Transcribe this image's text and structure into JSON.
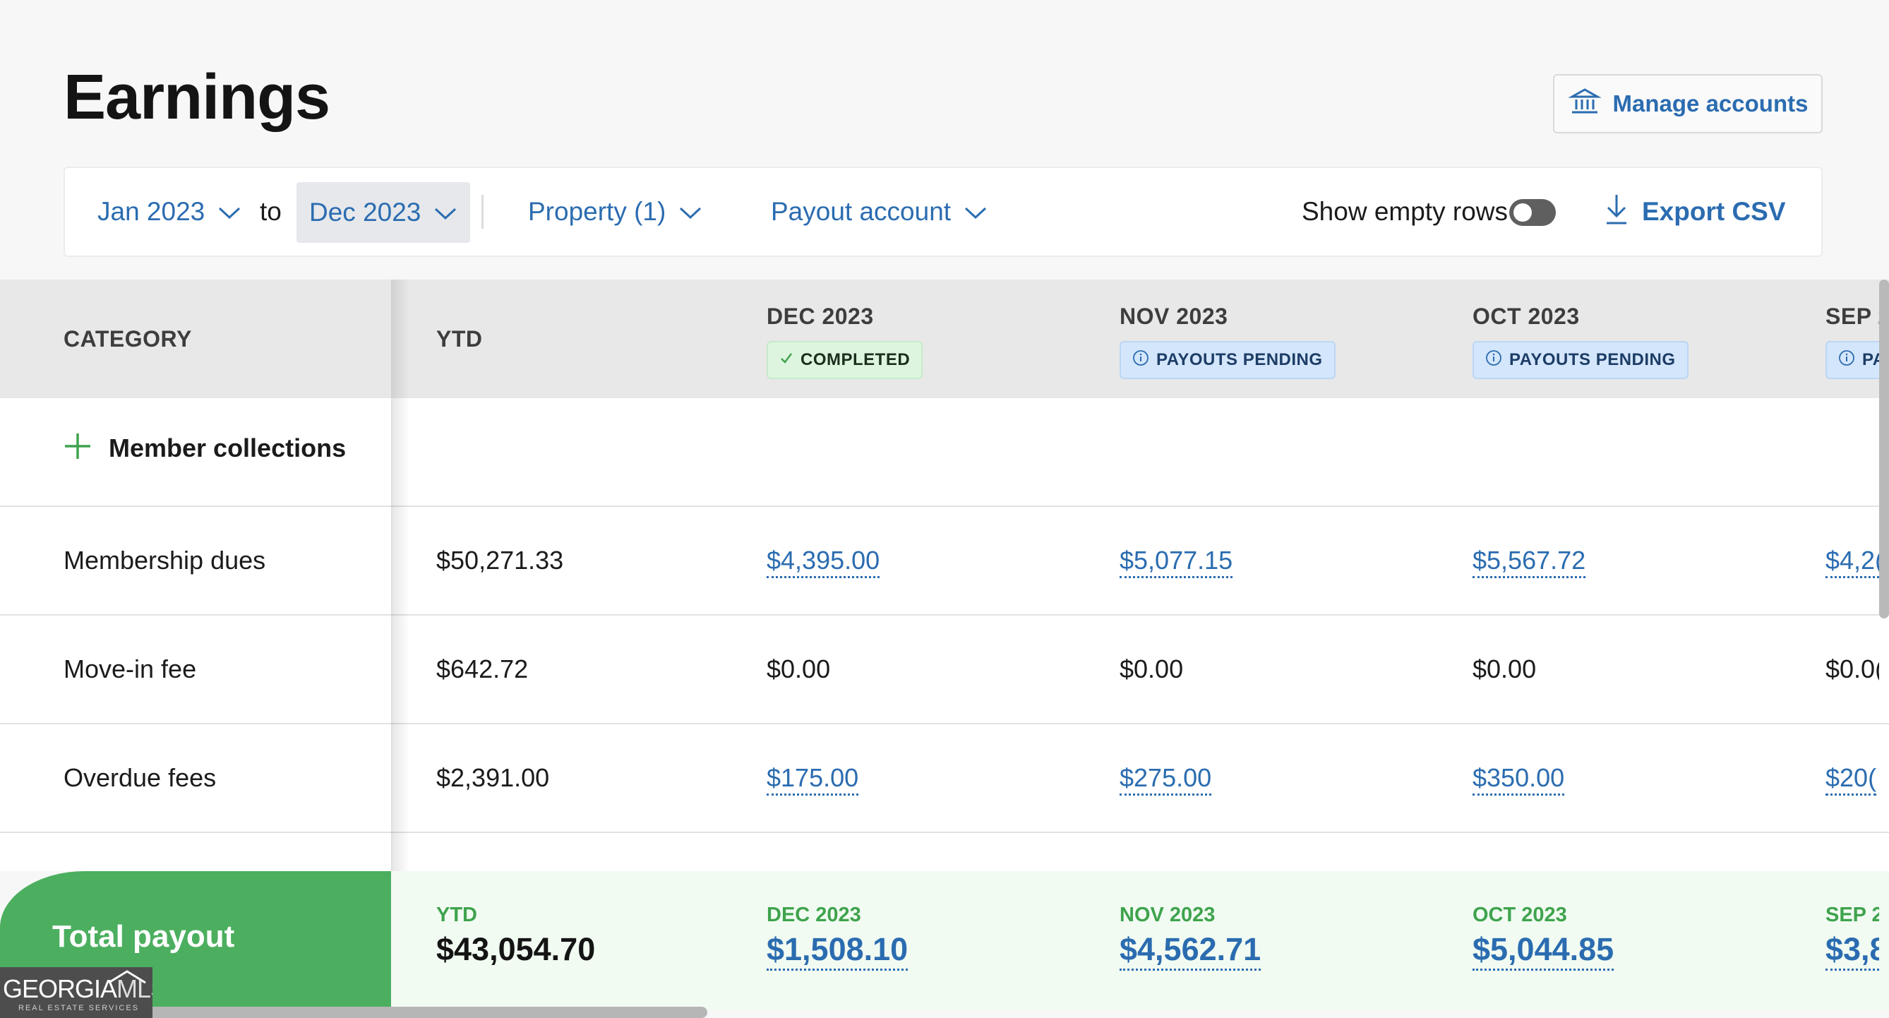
{
  "page": {
    "title": "Earnings",
    "manage_accounts_label": "Manage accounts"
  },
  "filters": {
    "from": "Jan 2023",
    "to_label": "to",
    "to": "Dec 2023",
    "property": "Property (1)",
    "payout_account": "Payout account",
    "show_empty_rows": "Show empty rows",
    "show_empty_rows_on": false,
    "export": "Export CSV"
  },
  "table": {
    "headers": {
      "category": "CATEGORY",
      "ytd": "YTD",
      "months": [
        {
          "label": "DEC 2023",
          "status": "COMPLETED"
        },
        {
          "label": "NOV 2023",
          "status": "PAYOUTS PENDING"
        },
        {
          "label": "OCT 2023",
          "status": "PAYOUTS PENDING"
        },
        {
          "label": "SEP 2",
          "status": "PA"
        }
      ]
    },
    "group": {
      "label": "Member collections"
    },
    "rows": [
      {
        "category": "Membership dues",
        "ytd": "$50,271.33",
        "months": [
          "$4,395.00",
          "$5,077.15",
          "$5,567.72",
          "$4,2("
        ]
      },
      {
        "category": "Move-in fee",
        "ytd": "$642.72",
        "months": [
          "$0.00",
          "$0.00",
          "$0.00",
          "$0.0("
        ]
      },
      {
        "category": "Overdue fees",
        "ytd": "$2,391.00",
        "months": [
          "$175.00",
          "$275.00",
          "$350.00",
          "$20("
        ]
      }
    ]
  },
  "totals": {
    "label": "Total payout",
    "ytd_label": "YTD",
    "ytd_value": "$43,054.70",
    "months": [
      {
        "label": "DEC 2023",
        "value": "$1,508.10"
      },
      {
        "label": "NOV 2023",
        "value": "$4,562.71"
      },
      {
        "label": "OCT 2023",
        "value": "$5,044.85"
      },
      {
        "label": "SEP 2",
        "value": "$3,8"
      }
    ]
  },
  "watermark": {
    "brand": "GEORGIA",
    "brand_suffix": "MLS",
    "tagline": "REAL ESTATE SERVICES"
  },
  "colors": {
    "link": "#2b6cb0",
    "total_green": "#4caf5f",
    "completed_bg": "#ddf5df",
    "pending_bg": "#d4e6fb"
  }
}
